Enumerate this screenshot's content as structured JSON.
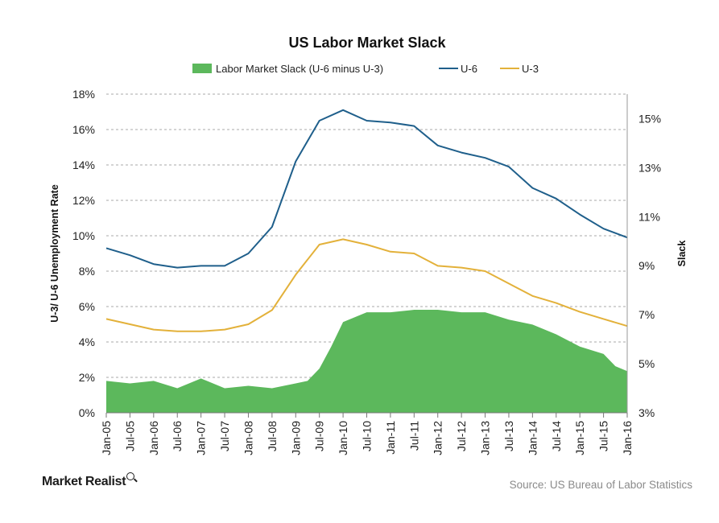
{
  "footer": {
    "brand": "Market Realist",
    "source": "Source: US Bureau of Labor Statistics"
  },
  "colors": {
    "slack": "#5cb85c",
    "u6": "#1f5f8b",
    "u3": "#e3b13a",
    "grid": "#a9a9a9"
  },
  "chart_data": {
    "type": "line",
    "title": "US Labor  Market Slack",
    "ylabel_left": "U-3/ U-6 Unemployment Rate",
    "ylabel_right": "Slack",
    "ylim_left": [
      0,
      18
    ],
    "ylim_right": [
      3,
      16
    ],
    "yticks_left": [
      "0%",
      "2%",
      "4%",
      "6%",
      "8%",
      "10%",
      "12%",
      "14%",
      "16%",
      "18%"
    ],
    "yticks_right": [
      "3%",
      "5%",
      "7%",
      "9%",
      "11%",
      "13%",
      "15%"
    ],
    "grid": true,
    "legend_position": "top",
    "x_categories": [
      "Jan-05",
      "Jul-05",
      "Jan-06",
      "Jul-06",
      "Jan-07",
      "Jul-07",
      "Jan-08",
      "Jul-08",
      "Jan-09",
      "Jul-09",
      "Jan-10",
      "Jul-10",
      "Jan-11",
      "Jul-11",
      "Jan-12",
      "Jul-12",
      "Jan-13",
      "Jul-13",
      "Jan-14",
      "Jul-14",
      "Jan-15",
      "Jul-15",
      "Jan-16"
    ],
    "series": [
      {
        "name": "Labor Market Slack (U-6 minus U-3)",
        "kind": "area",
        "axis": "right",
        "values": [
          4.3,
          4.2,
          4.3,
          4.0,
          4.4,
          4.0,
          4.1,
          4.0,
          4.2,
          4.3,
          4.8,
          5.7,
          6.7,
          7.1,
          7.1,
          7.2,
          7.2,
          7.1,
          7.1,
          6.8,
          6.6,
          6.2,
          5.7,
          5.4,
          4.9,
          4.7,
          4.8
        ],
        "x_index": [
          0,
          1,
          2,
          3,
          4,
          5,
          6,
          7,
          8,
          8.5,
          9,
          9.5,
          10,
          11,
          12,
          13,
          14,
          15,
          16,
          17,
          18,
          19,
          20,
          21,
          21.5,
          22,
          22
        ]
      },
      {
        "name": "U-6",
        "kind": "line",
        "axis": "left",
        "values": [
          9.3,
          8.9,
          8.4,
          8.2,
          8.3,
          8.3,
          9.0,
          10.5,
          14.2,
          16.5,
          17.1,
          16.5,
          16.4,
          16.2,
          15.1,
          14.7,
          14.4,
          13.9,
          12.7,
          12.1,
          11.2,
          10.4,
          9.9
        ],
        "x_index": [
          0,
          1,
          2,
          3,
          4,
          5,
          6,
          7,
          8,
          9,
          10,
          11,
          12,
          13,
          14,
          15,
          16,
          17,
          18,
          19,
          20,
          21,
          22
        ]
      },
      {
        "name": "U-3",
        "kind": "line",
        "axis": "left",
        "values": [
          5.3,
          5.0,
          4.7,
          4.6,
          4.6,
          4.7,
          5.0,
          5.8,
          7.8,
          9.5,
          9.8,
          9.5,
          9.1,
          9.0,
          8.3,
          8.2,
          8.0,
          7.3,
          6.6,
          6.2,
          5.7,
          5.3,
          4.9
        ],
        "x_index": [
          0,
          1,
          2,
          3,
          4,
          5,
          6,
          7,
          8,
          9,
          10,
          11,
          12,
          13,
          14,
          15,
          16,
          17,
          18,
          19,
          20,
          21,
          22
        ]
      }
    ]
  }
}
